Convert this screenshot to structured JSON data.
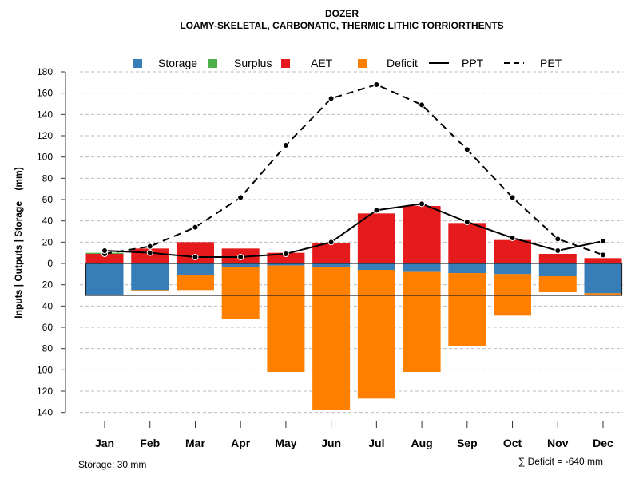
{
  "chart_data": {
    "type": "bar",
    "title": "DOZER",
    "subtitle": "LOAMY-SKELETAL, CARBONATIC, THERMIC LITHIC TORRIORTHENTS",
    "ylabel": "Inputs | Outputs | Storage    (mm)",
    "xlabel": "",
    "ylim": [
      -140,
      180
    ],
    "yticks": [
      180,
      160,
      140,
      120,
      100,
      80,
      60,
      40,
      20,
      0,
      -20,
      -40,
      -60,
      -80,
      -100,
      -120,
      -140
    ],
    "ytick_labels": [
      "180",
      "160",
      "140",
      "120",
      "100",
      "80",
      "60",
      "40",
      "20",
      "0",
      "20",
      "40",
      "60",
      "80",
      "100",
      "120",
      "140"
    ],
    "grid": true,
    "legend_position": "top",
    "categories": [
      "Jan",
      "Feb",
      "Mar",
      "Apr",
      "May",
      "Jun",
      "Jul",
      "Aug",
      "Sep",
      "Oct",
      "Nov",
      "Dec"
    ],
    "legend": [
      {
        "label": "Storage",
        "type": "box",
        "color": "#377EB8"
      },
      {
        "label": "Surplus",
        "type": "box",
        "color": "#4DAF4A"
      },
      {
        "label": "AET",
        "type": "box",
        "color": "#E41A1C"
      },
      {
        "label": "Deficit",
        "type": "box",
        "color": "#FF7F00"
      },
      {
        "label": "PPT",
        "type": "line-solid",
        "color": "#000000"
      },
      {
        "label": "PET",
        "type": "line-dashed",
        "color": "#000000"
      }
    ],
    "series": [
      {
        "name": "Surplus",
        "color": "#4DAF4A",
        "values": [
          1,
          0,
          0,
          0,
          0,
          0,
          0,
          0,
          0,
          0,
          0,
          0
        ]
      },
      {
        "name": "AET",
        "color": "#E41A1C",
        "values": [
          9,
          14,
          20,
          14,
          10,
          19,
          47,
          54,
          38,
          22,
          9,
          5
        ]
      },
      {
        "name": "Storage",
        "color": "#377EB8",
        "values": [
          30,
          25,
          11,
          3,
          2,
          3,
          6,
          8,
          9,
          10,
          12,
          28
        ]
      },
      {
        "name": "Deficit",
        "color": "#FF7F00",
        "values": [
          0,
          -1,
          -14,
          -49,
          -100,
          -135,
          -121,
          -94,
          -69,
          -39,
          -15,
          -2
        ]
      },
      {
        "name": "PPT",
        "color": "#000000",
        "style": "solid",
        "values": [
          12,
          10,
          6,
          6,
          9,
          20,
          50,
          56,
          39,
          24,
          12,
          21
        ]
      },
      {
        "name": "PET",
        "color": "#000000",
        "style": "dashed",
        "values": [
          9,
          16,
          34,
          62,
          111,
          155,
          168,
          149,
          107,
          62,
          23,
          8
        ]
      }
    ],
    "storage_capacity": 30,
    "annotations": {
      "storage": "Storage: 30 mm",
      "deficit_sum": "∑ Deficit = -640 mm"
    }
  }
}
